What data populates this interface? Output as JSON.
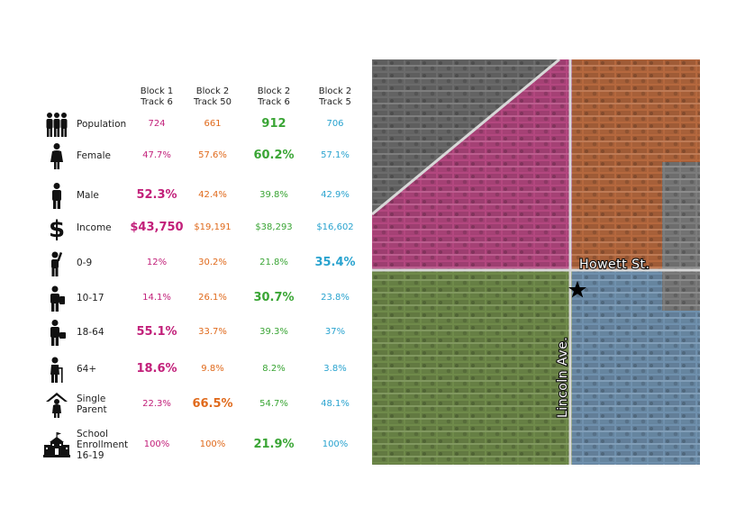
{
  "headers": [
    {
      "line1": "Block 1",
      "line2": "Track 6"
    },
    {
      "line1": "Block 2",
      "line2": "Track 50"
    },
    {
      "line1": "Block 2",
      "line2": "Track 6"
    },
    {
      "line1": "Block 2",
      "line2": "Track 5"
    }
  ],
  "rows": [
    {
      "icon": "population-icon",
      "label": [
        "Population"
      ],
      "values": [
        "724",
        "661",
        "912",
        "706"
      ],
      "highlight": 2
    },
    {
      "icon": "female-icon",
      "label": [
        "Female"
      ],
      "values": [
        "47.7%",
        "57.6%",
        "60.2%",
        "57.1%"
      ],
      "highlight": 2
    },
    {
      "icon": "male-icon",
      "label": [
        "Male"
      ],
      "values": [
        "52.3%",
        "42.4%",
        "39.8%",
        "42.9%"
      ],
      "highlight": 0
    },
    {
      "icon": "dollar-icon",
      "label": [
        "Income"
      ],
      "values": [
        "$43,750",
        "$19,191",
        "$38,293",
        "$16,602"
      ],
      "highlight": 0
    },
    {
      "icon": "child-icon",
      "label": [
        "0-9"
      ],
      "values": [
        "12%",
        "30.2%",
        "21.8%",
        "35.4%"
      ],
      "highlight": 3
    },
    {
      "icon": "student-icon",
      "label": [
        "10-17"
      ],
      "values": [
        "14.1%",
        "26.1%",
        "30.7%",
        "23.8%"
      ],
      "highlight": 2
    },
    {
      "icon": "briefcase-person-icon",
      "label": [
        "18-64"
      ],
      "values": [
        "55.1%",
        "33.7%",
        "39.3%",
        "37%"
      ],
      "highlight": 0
    },
    {
      "icon": "elderly-cane-icon",
      "label": [
        "64+"
      ],
      "values": [
        "18.6%",
        "9.8%",
        "8.2%",
        "3.8%"
      ],
      "highlight": 0
    },
    {
      "icon": "single-parent-icon",
      "label": [
        "Single",
        "Parent"
      ],
      "values": [
        "22.3%",
        "66.5%",
        "54.7%",
        "48.1%"
      ],
      "highlight": 1
    },
    {
      "icon": "school-building-icon",
      "label": [
        "School",
        "Enrollment",
        "16-19"
      ],
      "values": [
        "100%",
        "100%",
        "21.9%",
        "100%"
      ],
      "highlight": 2
    }
  ],
  "map": {
    "streets": {
      "horizontal": "Howett St.",
      "vertical": "Lincoln Ave."
    },
    "marker": "star-icon",
    "region_colors": {
      "block1_track6": "#c2207a",
      "block2_track50": "#e06a1c",
      "block2_track6": "#3aa535",
      "block2_track5": "#29a3cf",
      "outside": "#6b6b6b"
    }
  }
}
